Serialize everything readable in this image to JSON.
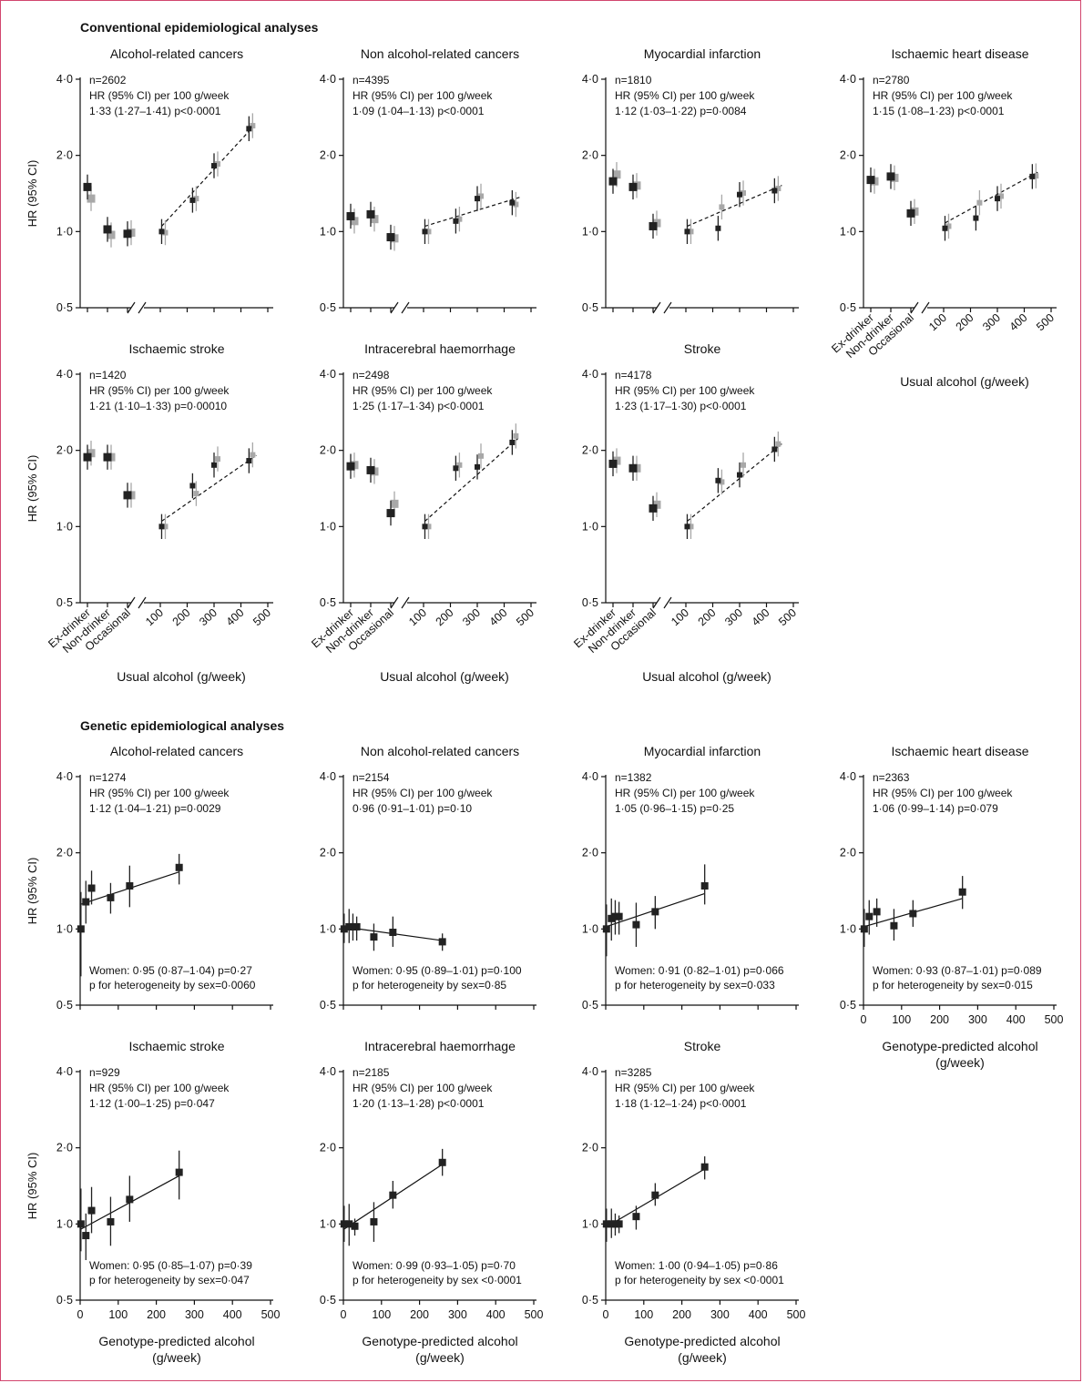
{
  "sections": {
    "conventional": "Conventional epidemiological analyses",
    "genetic": "Genetic epidemiological analyses"
  },
  "y_axis_label": "HR (95% CI)",
  "x_axis_labels": {
    "conventional": "Usual alcohol (g/week)",
    "genetic": "Genotype-predicted alcohol (g/week)"
  },
  "colors": {
    "men": "#222222",
    "women": "#a8a8a8",
    "frame": "#d2456e"
  },
  "chart_data": [
    {
      "type": "scatter",
      "section": "conventional",
      "title": "Alcohol-related cancers",
      "annotation": [
        "n=2602",
        "HR (95% CI) per 100 g/week",
        "1·33 (1·27–1·41) p<0·0001"
      ],
      "yscale": "log",
      "ylim": [
        0.5,
        4.0
      ],
      "yticks": [
        "0·5",
        "1·0",
        "2·0",
        "4·0"
      ],
      "categories": [
        "Ex-drinker",
        "Non-drinker",
        "Occasional"
      ],
      "xticks_numeric": [
        100,
        200,
        300,
        400,
        500
      ],
      "trend": "dashed",
      "men": {
        "categorical": [
          1.5,
          1.02,
          0.98
        ],
        "x": [
          105,
          220,
          300,
          430
        ],
        "y": [
          1.0,
          1.33,
          1.82,
          2.55
        ]
      },
      "women": {
        "categorical": [
          1.35,
          0.97,
          0.99
        ],
        "x": [
          105,
          220,
          300,
          430
        ],
        "y": [
          0.99,
          1.35,
          1.85,
          2.62
        ]
      }
    },
    {
      "type": "scatter",
      "section": "conventional",
      "title": "Non alcohol-related cancers",
      "annotation": [
        "n=4395",
        "HR (95% CI) per 100 g/week",
        "1·09 (1·04–1·13) p<0·0001"
      ],
      "yscale": "log",
      "ylim": [
        0.5,
        4.0
      ],
      "yticks": [
        "0·5",
        "1·0",
        "2·0",
        "4·0"
      ],
      "categories": [
        "Ex-drinker",
        "Non-drinker",
        "Occasional"
      ],
      "xticks_numeric": [
        100,
        200,
        300,
        400,
        500
      ],
      "trend": "dashed",
      "men": {
        "categorical": [
          1.15,
          1.17,
          0.95
        ],
        "x": [
          105,
          220,
          300,
          430
        ],
        "y": [
          1.0,
          1.1,
          1.35,
          1.3
        ]
      },
      "women": {
        "categorical": [
          1.1,
          1.12,
          0.94
        ],
        "x": [
          105,
          220,
          300,
          430
        ],
        "y": [
          1.0,
          1.12,
          1.38,
          1.28
        ]
      }
    },
    {
      "type": "scatter",
      "section": "conventional",
      "title": "Myocardial infarction",
      "annotation": [
        "n=1810",
        "HR (95% CI) per 100 g/week",
        "1·12 (1·03–1·22) p=0·0084"
      ],
      "yscale": "log",
      "ylim": [
        0.5,
        4.0
      ],
      "yticks": [
        "0·5",
        "1·0",
        "2·0",
        "4·0"
      ],
      "categories": [
        "Ex-drinker",
        "Non-drinker",
        "Occasional"
      ],
      "xticks_numeric": [
        100,
        200,
        300,
        400,
        500
      ],
      "trend": "dashed",
      "men": {
        "categorical": [
          1.58,
          1.5,
          1.05
        ],
        "x": [
          105,
          220,
          300,
          430
        ],
        "y": [
          1.0,
          1.03,
          1.4,
          1.45
        ]
      },
      "women": {
        "categorical": [
          1.68,
          1.52,
          1.08
        ],
        "x": [
          105,
          220,
          300,
          430
        ],
        "y": [
          1.0,
          1.25,
          1.42,
          1.48
        ]
      }
    },
    {
      "type": "scatter",
      "section": "conventional",
      "title": "Ischaemic heart disease",
      "annotation": [
        "n=2780",
        "HR (95% CI) per 100 g/week",
        "1·15 (1·08–1·23) p<0·0001"
      ],
      "yscale": "log",
      "ylim": [
        0.5,
        4.0
      ],
      "yticks": [
        "0·5",
        "1·0",
        "2·0",
        "4·0"
      ],
      "categories": [
        "Ex-drinker",
        "Non-drinker",
        "Occasional"
      ],
      "xticks_numeric": [
        100,
        200,
        300,
        400,
        500
      ],
      "trend": "dashed",
      "show_xaxis_labels": true,
      "men": {
        "categorical": [
          1.6,
          1.65,
          1.18
        ],
        "x": [
          105,
          220,
          300,
          430
        ],
        "y": [
          1.03,
          1.13,
          1.35,
          1.65
        ]
      },
      "women": {
        "categorical": [
          1.58,
          1.63,
          1.2
        ],
        "x": [
          105,
          220,
          300,
          430
        ],
        "y": [
          1.05,
          1.3,
          1.38,
          1.66
        ]
      }
    },
    {
      "type": "scatter",
      "section": "conventional",
      "title": "Ischaemic stroke",
      "annotation": [
        "n=1420",
        "HR (95% CI) per 100 g/week",
        "1·21 (1·10–1·33) p=0·00010"
      ],
      "yscale": "log",
      "ylim": [
        0.5,
        4.0
      ],
      "yticks": [
        "0·5",
        "1·0",
        "2·0",
        "4·0"
      ],
      "categories": [
        "Ex-drinker",
        "Non-drinker",
        "Occasional"
      ],
      "xticks_numeric": [
        100,
        200,
        300,
        400,
        500
      ],
      "trend": "dashed",
      "show_xaxis_labels": true,
      "men": {
        "categorical": [
          1.88,
          1.88,
          1.33
        ],
        "x": [
          105,
          220,
          300,
          430
        ],
        "y": [
          1.0,
          1.45,
          1.75,
          1.82
        ]
      },
      "women": {
        "categorical": [
          1.95,
          1.88,
          1.33
        ],
        "x": [
          105,
          220,
          300,
          430
        ],
        "y": [
          1.0,
          1.35,
          1.85,
          1.92
        ]
      }
    },
    {
      "type": "scatter",
      "section": "conventional",
      "title": "Intracerebral haemorrhage",
      "annotation": [
        "n=2498",
        "HR (95% CI) per 100 g/week",
        "1·25 (1·17–1·34) p<0·0001"
      ],
      "yscale": "log",
      "ylim": [
        0.5,
        4.0
      ],
      "yticks": [
        "0·5",
        "1·0",
        "2·0",
        "4·0"
      ],
      "categories": [
        "Ex-drinker",
        "Non-drinker",
        "Occasional"
      ],
      "xticks_numeric": [
        100,
        200,
        300,
        400,
        500
      ],
      "trend": "dashed",
      "show_xaxis_labels": true,
      "men": {
        "categorical": [
          1.73,
          1.67,
          1.13
        ],
        "x": [
          105,
          220,
          300,
          430
        ],
        "y": [
          1.0,
          1.7,
          1.72,
          2.15
        ]
      },
      "women": {
        "categorical": [
          1.75,
          1.65,
          1.23
        ],
        "x": [
          105,
          220,
          300,
          430
        ],
        "y": [
          1.0,
          1.75,
          1.9,
          2.28
        ]
      }
    },
    {
      "type": "scatter",
      "section": "conventional",
      "title": "Stroke",
      "annotation": [
        "n=4178",
        "HR (95% CI) per 100 g/week",
        "1·23 (1·17–1·30) p<0·0001"
      ],
      "yscale": "log",
      "ylim": [
        0.5,
        4.0
      ],
      "yticks": [
        "0·5",
        "1·0",
        "2·0",
        "4·0"
      ],
      "categories": [
        "Ex-drinker",
        "Non-drinker",
        "Occasional"
      ],
      "xticks_numeric": [
        100,
        200,
        300,
        400,
        500
      ],
      "trend": "dashed",
      "show_xaxis_labels": true,
      "men": {
        "categorical": [
          1.77,
          1.7,
          1.18
        ],
        "x": [
          105,
          220,
          300,
          430
        ],
        "y": [
          1.0,
          1.52,
          1.6,
          2.02
        ]
      },
      "women": {
        "categorical": [
          1.82,
          1.7,
          1.22
        ],
        "x": [
          105,
          220,
          300,
          430
        ],
        "y": [
          1.0,
          1.5,
          1.75,
          2.12
        ]
      }
    },
    {
      "type": "scatter",
      "section": "genetic",
      "title": "Alcohol-related cancers",
      "annotation": [
        "n=1274",
        "HR (95% CI) per 100 g/week",
        "1·12 (1·04–1·21) p=0·0029"
      ],
      "women_note": [
        "Women: 0·95 (0·87–1·04)  p=0·27",
        "p for heterogeneity by sex=0·0060"
      ],
      "yscale": "log",
      "ylim": [
        0.5,
        4.0
      ],
      "yticks": [
        "0·5",
        "1·0",
        "2·0",
        "4·0"
      ],
      "xlim": [
        0,
        500
      ],
      "xticks": [
        "0",
        "100",
        "200",
        "300",
        "400",
        "500"
      ],
      "trend": "solid",
      "trend_line": [
        [
          0,
          1.25
        ],
        [
          260,
          1.68
        ]
      ],
      "x": [
        2,
        15,
        30,
        80,
        130,
        260
      ],
      "y": [
        1.0,
        1.28,
        1.45,
        1.33,
        1.48,
        1.75
      ],
      "lo": [
        0.65,
        1.05,
        1.25,
        1.15,
        1.22,
        1.5
      ],
      "hi": [
        1.4,
        1.55,
        1.7,
        1.52,
        1.78,
        1.98
      ]
    },
    {
      "type": "scatter",
      "section": "genetic",
      "title": "Non alcohol-related cancers",
      "annotation": [
        "n=2154",
        "HR (95% CI) per 100 g/week",
        "0·96 (0·91–1·01) p=0·10"
      ],
      "women_note": [
        "Women: 0·95 (0·89–1·01)  p=0·100",
        "p for heterogeneity by sex=0·85"
      ],
      "yscale": "log",
      "ylim": [
        0.5,
        4.0
      ],
      "yticks": [
        "0·5",
        "1·0",
        "2·0",
        "4·0"
      ],
      "xlim": [
        0,
        500
      ],
      "xticks": [
        "0",
        "100",
        "200",
        "300",
        "400",
        "500"
      ],
      "trend": "solid",
      "trend_line": [
        [
          0,
          1.02
        ],
        [
          260,
          0.9
        ]
      ],
      "x": [
        2,
        15,
        25,
        35,
        80,
        130,
        260
      ],
      "y": [
        1.0,
        1.02,
        1.02,
        1.02,
        0.93,
        0.97,
        0.89
      ],
      "lo": [
        0.88,
        0.88,
        0.9,
        0.9,
        0.82,
        0.85,
        0.82
      ],
      "hi": [
        1.15,
        1.2,
        1.15,
        1.12,
        1.05,
        1.12,
        0.96
      ]
    },
    {
      "type": "scatter",
      "section": "genetic",
      "title": "Myocardial infarction",
      "annotation": [
        "n=1382",
        "HR (95% CI) per 100 g/week",
        "1·05 (0·96–1·15) p=0·25"
      ],
      "women_note": [
        "Women: 0·91 (0·82–1·01)  p=0·066",
        "p for heterogeneity by sex=0·033"
      ],
      "yscale": "log",
      "ylim": [
        0.5,
        4.0
      ],
      "yticks": [
        "0·5",
        "1·0",
        "2·0",
        "4·0"
      ],
      "xlim": [
        0,
        500
      ],
      "xticks": [
        "0",
        "100",
        "200",
        "300",
        "400",
        "500"
      ],
      "trend": "solid",
      "trend_line": [
        [
          0,
          1.02
        ],
        [
          260,
          1.38
        ]
      ],
      "x": [
        2,
        15,
        25,
        35,
        80,
        130,
        260
      ],
      "y": [
        1.0,
        1.1,
        1.12,
        1.12,
        1.04,
        1.17,
        1.48
      ],
      "lo": [
        0.78,
        0.9,
        0.95,
        0.95,
        0.85,
        1.0,
        1.25
      ],
      "hi": [
        1.25,
        1.32,
        1.3,
        1.28,
        1.27,
        1.35,
        1.8
      ]
    },
    {
      "type": "scatter",
      "section": "genetic",
      "title": "Ischaemic heart disease",
      "annotation": [
        "n=2363",
        "HR (95% CI) per 100 g/week",
        "1·06 (0·99–1·14) p=0·079"
      ],
      "women_note": [
        "Women: 0·93 (0·87–1·01)  p=0·089",
        "p for heterogeneity by sex=0·015"
      ],
      "yscale": "log",
      "ylim": [
        0.5,
        4.0
      ],
      "yticks": [
        "0·5",
        "1·0",
        "2·0",
        "4·0"
      ],
      "xlim": [
        0,
        500
      ],
      "xticks": [
        "0",
        "100",
        "200",
        "300",
        "400",
        "500"
      ],
      "trend": "solid",
      "trend_line": [
        [
          0,
          1.02
        ],
        [
          260,
          1.32
        ]
      ],
      "show_xaxis_labels": true,
      "x": [
        2,
        15,
        35,
        80,
        130,
        260
      ],
      "y": [
        1.0,
        1.12,
        1.17,
        1.03,
        1.15,
        1.4
      ],
      "lo": [
        0.85,
        0.95,
        1.02,
        0.9,
        1.02,
        1.2
      ],
      "hi": [
        1.2,
        1.3,
        1.32,
        1.2,
        1.3,
        1.62
      ]
    },
    {
      "type": "scatter",
      "section": "genetic",
      "title": "Ischaemic stroke",
      "annotation": [
        "n=929",
        "HR (95% CI) per 100 g/week",
        "1·12 (1·00–1·25) p=0·047"
      ],
      "women_note": [
        "Women: 0·95 (0·85–1·07)  p=0·39",
        "p for heterogeneity by sex=0·047"
      ],
      "yscale": "log",
      "ylim": [
        0.5,
        4.0
      ],
      "yticks": [
        "0·5",
        "1·0",
        "2·0",
        "4·0"
      ],
      "xlim": [
        0,
        500
      ],
      "xticks": [
        "0",
        "100",
        "200",
        "300",
        "400",
        "500"
      ],
      "trend": "solid",
      "trend_line": [
        [
          0,
          0.95
        ],
        [
          260,
          1.55
        ]
      ],
      "show_xaxis_labels": true,
      "x": [
        2,
        15,
        30,
        80,
        130,
        260
      ],
      "y": [
        1.0,
        0.9,
        1.13,
        1.02,
        1.25,
        1.6
      ],
      "lo": [
        0.78,
        0.72,
        0.92,
        0.82,
        1.02,
        1.25
      ],
      "hi": [
        1.38,
        1.1,
        1.4,
        1.28,
        1.55,
        1.95
      ]
    },
    {
      "type": "scatter",
      "section": "genetic",
      "title": "Intracerebral haemorrhage",
      "annotation": [
        "n=2185",
        "HR (95% CI) per 100 g/week",
        "1·20 (1·13–1·28) p<0·0001"
      ],
      "women_note": [
        "Women: 0·99 (0·93–1·05)  p=0·70",
        "p for heterogeneity by sex <0·0001"
      ],
      "yscale": "log",
      "ylim": [
        0.5,
        4.0
      ],
      "yticks": [
        "0·5",
        "1·0",
        "2·0",
        "4·0"
      ],
      "xlim": [
        0,
        500
      ],
      "xticks": [
        "0",
        "100",
        "200",
        "300",
        "400",
        "500"
      ],
      "trend": "solid",
      "trend_line": [
        [
          0,
          0.95
        ],
        [
          260,
          1.72
        ]
      ],
      "show_xaxis_labels": true,
      "x": [
        2,
        15,
        30,
        80,
        130,
        260
      ],
      "y": [
        1.0,
        1.0,
        0.98,
        1.02,
        1.3,
        1.75
      ],
      "lo": [
        0.85,
        0.82,
        0.9,
        0.85,
        1.15,
        1.55
      ],
      "hi": [
        1.18,
        1.2,
        1.05,
        1.22,
        1.48,
        1.98
      ]
    },
    {
      "type": "scatter",
      "section": "genetic",
      "title": "Stroke",
      "annotation": [
        "n=3285",
        "HR (95% CI) per 100 g/week",
        "1·18 (1·12–1·24) p<0·0001"
      ],
      "women_note": [
        "Women: 1·00 (0·94–1·05)  p=0·86",
        "p for heterogeneity by sex <0·0001"
      ],
      "yscale": "log",
      "ylim": [
        0.5,
        4.0
      ],
      "yticks": [
        "0·5",
        "1·0",
        "2·0",
        "4·0"
      ],
      "xlim": [
        0,
        500
      ],
      "xticks": [
        "0",
        "100",
        "200",
        "300",
        "400",
        "500"
      ],
      "trend": "solid",
      "trend_line": [
        [
          0,
          0.97
        ],
        [
          260,
          1.65
        ]
      ],
      "show_xaxis_labels": true,
      "x": [
        2,
        15,
        25,
        35,
        80,
        130,
        260
      ],
      "y": [
        1.0,
        1.0,
        1.0,
        1.0,
        1.07,
        1.3,
        1.68
      ],
      "lo": [
        0.85,
        0.88,
        0.9,
        0.92,
        0.95,
        1.18,
        1.5
      ],
      "hi": [
        1.15,
        1.15,
        1.1,
        1.08,
        1.18,
        1.45,
        1.85
      ]
    }
  ]
}
